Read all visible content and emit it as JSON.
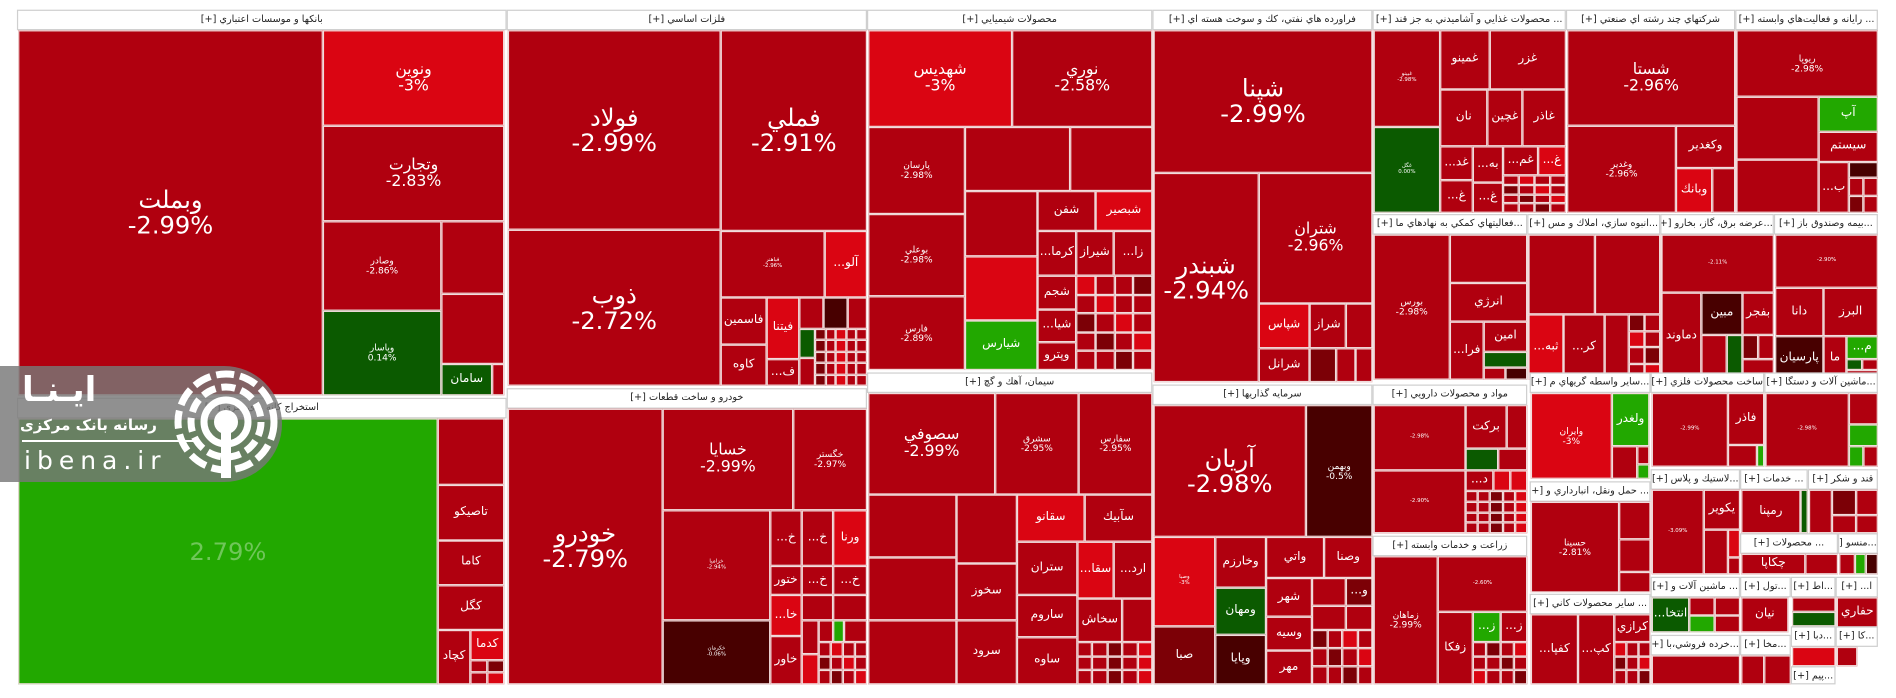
{
  "colors": {
    "R": "#b0000f",
    "B": "#da0512",
    "G": "#22a800",
    "D": "#0b5a00",
    "M": "#480000",
    "K": "#7c0006"
  },
  "watermark": {
    "name": "ایـنـا",
    "subtitle": "رسانه بانک مرکزی",
    "domain": "ibena.ir"
  },
  "sectors": [
    {
      "title": "بانكها و موسسات اعتباري [+]",
      "tiles": [
        {
          "s": "وبملت",
          "c": "-2.99%"
        },
        {
          "s": "ونوين",
          "c": "-3%"
        },
        {
          "s": "وتجارت",
          "c": "-2.83%"
        },
        {
          "s": "وصادر",
          "c": "-2.86%"
        },
        {
          "s": "وپاسار",
          "c": "0.14%"
        },
        {
          "s": "سامان",
          "c": ""
        }
      ]
    },
    {
      "title": "استخراج كانه هاي فلزي [+]",
      "tiles": [
        {
          "s": "",
          "c": "2.79%"
        },
        {
          "s": "تاصيكو",
          "c": ""
        },
        {
          "s": "كاما",
          "c": ""
        },
        {
          "s": "كگل",
          "c": ""
        },
        {
          "s": "كچاد",
          "c": ""
        },
        {
          "s": "كدما",
          "c": ""
        }
      ]
    },
    {
      "title": "فلزات اساسي [+]",
      "tiles": [
        {
          "s": "فولاد",
          "c": "-2.99%"
        },
        {
          "s": "ذوب",
          "c": "-2.72%"
        },
        {
          "s": "فملي",
          "c": "-2.91%"
        },
        {
          "s": "فباهنر",
          "c": "-2.96%"
        },
        {
          "s": "...آلو",
          "c": ""
        },
        {
          "s": "فاسمين",
          "c": ""
        },
        {
          "s": "فيتنا",
          "c": ""
        },
        {
          "s": "كاوه",
          "c": ""
        },
        {
          "s": "...ف",
          "c": ""
        }
      ]
    },
    {
      "title": "خودرو و ساخت قطعات [+]",
      "tiles": [
        {
          "s": "خودرو",
          "c": "-2.79%"
        },
        {
          "s": "خسايا",
          "c": "-2.99%"
        },
        {
          "s": "خگستر",
          "c": "-2.97%"
        },
        {
          "s": "خزاميا",
          "c": "-2.94%"
        },
        {
          "s": "خكرمان",
          "c": "-0.06%"
        },
        {
          "s": "...خ",
          "c": ""
        },
        {
          "s": "ختور",
          "c": ""
        },
        {
          "s": "...خا",
          "c": ""
        },
        {
          "s": "خاور",
          "c": ""
        },
        {
          "s": "...خ",
          "c": ""
        },
        {
          "s": "...خ",
          "c": ""
        },
        {
          "s": "ورنا",
          "c": ""
        },
        {
          "s": "...خ",
          "c": ""
        }
      ]
    },
    {
      "title": "محصولات شيميايي [+]",
      "tiles": [
        {
          "s": "شهديس",
          "c": "-3%"
        },
        {
          "s": "نوري",
          "c": "-2.58%"
        },
        {
          "s": "پارسان",
          "c": "-2.98%"
        },
        {
          "s": "بوعلي",
          "c": "-2.98%"
        },
        {
          "s": "فارس",
          "c": "-2.89%"
        },
        {
          "s": "شفن",
          "c": ""
        },
        {
          "s": "شبصير",
          "c": ""
        },
        {
          "s": "...كرما",
          "c": ""
        },
        {
          "s": "شيراز",
          "c": ""
        },
        {
          "s": "...زا",
          "c": ""
        },
        {
          "s": "شجم",
          "c": ""
        },
        {
          "s": "...شيا",
          "c": ""
        },
        {
          "s": "وپترو",
          "c": ""
        },
        {
          "s": "شيارس",
          "c": ""
        }
      ]
    },
    {
      "title": "سيمان، آهك و گچ [+]",
      "tiles": [
        {
          "s": "سصوفي",
          "c": "-2.99%"
        },
        {
          "s": "سشرق",
          "c": "-2.95%"
        },
        {
          "s": "سفارس",
          "c": "-2.95%"
        },
        {
          "s": "سخوز",
          "c": ""
        },
        {
          "s": "سرود",
          "c": ""
        },
        {
          "s": "سقانو",
          "c": ""
        },
        {
          "s": "سآبيك",
          "c": ""
        },
        {
          "s": "ستران",
          "c": ""
        },
        {
          "s": "ساروم",
          "c": ""
        },
        {
          "s": "ساوه",
          "c": ""
        },
        {
          "s": "...سقا",
          "c": ""
        },
        {
          "s": "...ارد",
          "c": ""
        },
        {
          "s": "سخاش",
          "c": ""
        }
      ]
    },
    {
      "title": "فراورده هاي نفتي، كك و سوخت هسته اي [+]",
      "tiles": [
        {
          "s": "شپنا",
          "c": "-2.99%"
        },
        {
          "s": "شبندر",
          "c": "-2.94%"
        },
        {
          "s": "شتران",
          "c": "-2.96%"
        },
        {
          "s": "شپاس",
          "c": ""
        },
        {
          "s": "شراز",
          "c": ""
        },
        {
          "s": "شرانل",
          "c": ""
        }
      ]
    },
    {
      "title": "سرمايه گذاريها [+]",
      "tiles": [
        {
          "s": "آريان",
          "c": "-2.98%"
        },
        {
          "s": "وبهمن",
          "c": "-0.5%"
        },
        {
          "s": "وصبا",
          "c": "-3%"
        },
        {
          "s": "صبا",
          "c": ""
        },
        {
          "s": "وخارزم",
          "c": ""
        },
        {
          "s": "ومهان",
          "c": ""
        },
        {
          "s": "وپايا",
          "c": ""
        },
        {
          "s": "واتي",
          "c": ""
        },
        {
          "s": "وصنا",
          "c": ""
        },
        {
          "s": "شهر",
          "c": ""
        },
        {
          "s": "وسيه",
          "c": ""
        },
        {
          "s": "مهر",
          "c": ""
        },
        {
          "s": "...و",
          "c": ""
        }
      ]
    },
    {
      "title": "... محصولات غذايي و آشاميدني به جز قند [+]",
      "tiles": [
        {
          "s": "غبينو",
          "c": "-2.98%"
        },
        {
          "s": "غگل",
          "c": "0.00%"
        },
        {
          "s": "غمينو",
          "c": ""
        },
        {
          "s": "غزر",
          "c": ""
        },
        {
          "s": "نان",
          "c": ""
        },
        {
          "s": "غچين",
          "c": ""
        },
        {
          "s": "غاذر",
          "c": ""
        },
        {
          "s": "...غد",
          "c": ""
        },
        {
          "s": "...به",
          "c": ""
        },
        {
          "s": "...غم",
          "c": ""
        },
        {
          "s": "...غ",
          "c": ""
        },
        {
          "s": "...غ",
          "c": ""
        },
        {
          "s": "...غ",
          "c": ""
        }
      ]
    },
    {
      "title": "شركتهاي چند رشته اي صنعتي [+]",
      "tiles": [
        {
          "s": "شستا",
          "c": "-2.96%"
        },
        {
          "s": "وغدير",
          "c": "-2.96%"
        },
        {
          "s": "وكغدير",
          "c": ""
        },
        {
          "s": "وبانك",
          "c": ""
        }
      ]
    },
    {
      "title": "... رايانه و فعاليت‌هاي وابسته [+]",
      "tiles": [
        {
          "s": "ريوپا",
          "c": "-2.98%"
        },
        {
          "s": "آپ",
          "c": ""
        },
        {
          "s": "سيستم",
          "c": ""
        },
        {
          "s": "...ب",
          "c": ""
        }
      ]
    },
    {
      "title": "...فعاليتهاي كمكي به نهادهاي ما [+]",
      "tiles": [
        {
          "s": "بورس",
          "c": "-2.98%"
        },
        {
          "s": "انرژي",
          "c": ""
        },
        {
          "s": "امين",
          "c": ""
        },
        {
          "s": "...فرا",
          "c": ""
        }
      ]
    },
    {
      "title": "...انبوه سازي، املاك و مس [+]",
      "tiles": [
        {
          "s": "...ثبه",
          "c": ""
        },
        {
          "s": "...كر",
          "c": ""
        }
      ]
    },
    {
      "title": "...عرضه برق، گاز، بخارو [+]",
      "tiles": [
        {
          "s": "",
          "c": "-2.11%"
        },
        {
          "s": "دماوند",
          "c": ""
        },
        {
          "s": "مبين",
          "c": ""
        },
        {
          "s": "بفجر",
          "c": ""
        }
      ]
    },
    {
      "title": "...بيمه وصندوق باز [+]",
      "tiles": [
        {
          "s": "",
          "c": "-2.90%"
        },
        {
          "s": "دانا",
          "c": ""
        },
        {
          "s": "البرز",
          "c": ""
        },
        {
          "s": "پارسيان",
          "c": ""
        },
        {
          "s": "ما",
          "c": ""
        },
        {
          "s": "...م",
          "c": ""
        }
      ]
    },
    {
      "title": "مواد و محصولات دارويي [+]",
      "tiles": [
        {
          "s": "",
          "c": "-2.98%"
        },
        {
          "s": "",
          "c": "-2.90%"
        },
        {
          "s": "بركت",
          "c": ""
        },
        {
          "s": "...د",
          "c": ""
        }
      ]
    },
    {
      "title": "زراعت و خدمات وابسته [+]",
      "tiles": [
        {
          "s": "زماهان",
          "c": "-2.99%"
        },
        {
          "s": "",
          "c": "-2.60%"
        },
        {
          "s": "زفكا",
          "c": ""
        },
        {
          "s": "...ز",
          "c": ""
        },
        {
          "s": "...ز",
          "c": ""
        }
      ]
    },
    {
      "title": "...ساير واسطه گريهاي م [+]",
      "tiles": [
        {
          "s": "وايران",
          "c": "-3%"
        },
        {
          "s": "ولغدر",
          "c": ""
        }
      ]
    },
    {
      "title": "... حمل ونقل، انبارداري و [+]",
      "tiles": [
        {
          "s": "حسينا",
          "c": "-2.81%"
        }
      ]
    },
    {
      "title": "... ساير محصولات كاني [+]",
      "tiles": [
        {
          "s": "...كفپا",
          "c": ""
        },
        {
          "s": "...كپ",
          "c": ""
        },
        {
          "s": "كرازي",
          "c": ""
        }
      ]
    },
    {
      "title": "ساخت محصولات فلزي [+]",
      "tiles": [
        {
          "s": "",
          "c": "-2.99%"
        },
        {
          "s": "فاذر",
          "c": ""
        }
      ]
    },
    {
      "title": "...ماشين آلات و دستگا [+]",
      "tiles": [
        {
          "s": "",
          "c": "-2.98%"
        }
      ]
    },
    {
      "title": "...لاستيك و پلاس [+]",
      "tiles": [
        {
          "s": "",
          "c": "-3.09%"
        },
        {
          "s": "يكوير",
          "c": ""
        }
      ]
    },
    {
      "title": "... خدمات [+]",
      "tiles": [
        {
          "s": "رمپنا",
          "c": ""
        }
      ]
    },
    {
      "title": "قند و شكر [+]",
      "tiles": []
    },
    {
      "title": "... محصولات [+]",
      "tiles": [
        {
          "s": "چكاپا",
          "c": ""
        }
      ]
    },
    {
      "title": "...منسو [+]",
      "tiles": []
    },
    {
      "title": "... ماشين آلات و [+]",
      "tiles": [
        {
          "s": "...انتخا",
          "c": ""
        }
      ]
    },
    {
      "title": "...تول [+]",
      "tiles": [
        {
          "s": "نيان",
          "c": ""
        }
      ]
    },
    {
      "title": "...اط [+]",
      "tiles": []
    },
    {
      "title": "ا... [+]",
      "tiles": [
        {
          "s": "حفاري",
          "c": ""
        }
      ]
    },
    {
      "title": "...خرده فروشي،با [+]",
      "tiles": []
    },
    {
      "title": "...مخا [+]",
      "tiles": []
    },
    {
      "title": "...دبا [+]",
      "tiles": []
    },
    {
      "title": "...كا [+]",
      "tiles": []
    },
    {
      "title": "...پيم [+]",
      "tiles": []
    }
  ]
}
